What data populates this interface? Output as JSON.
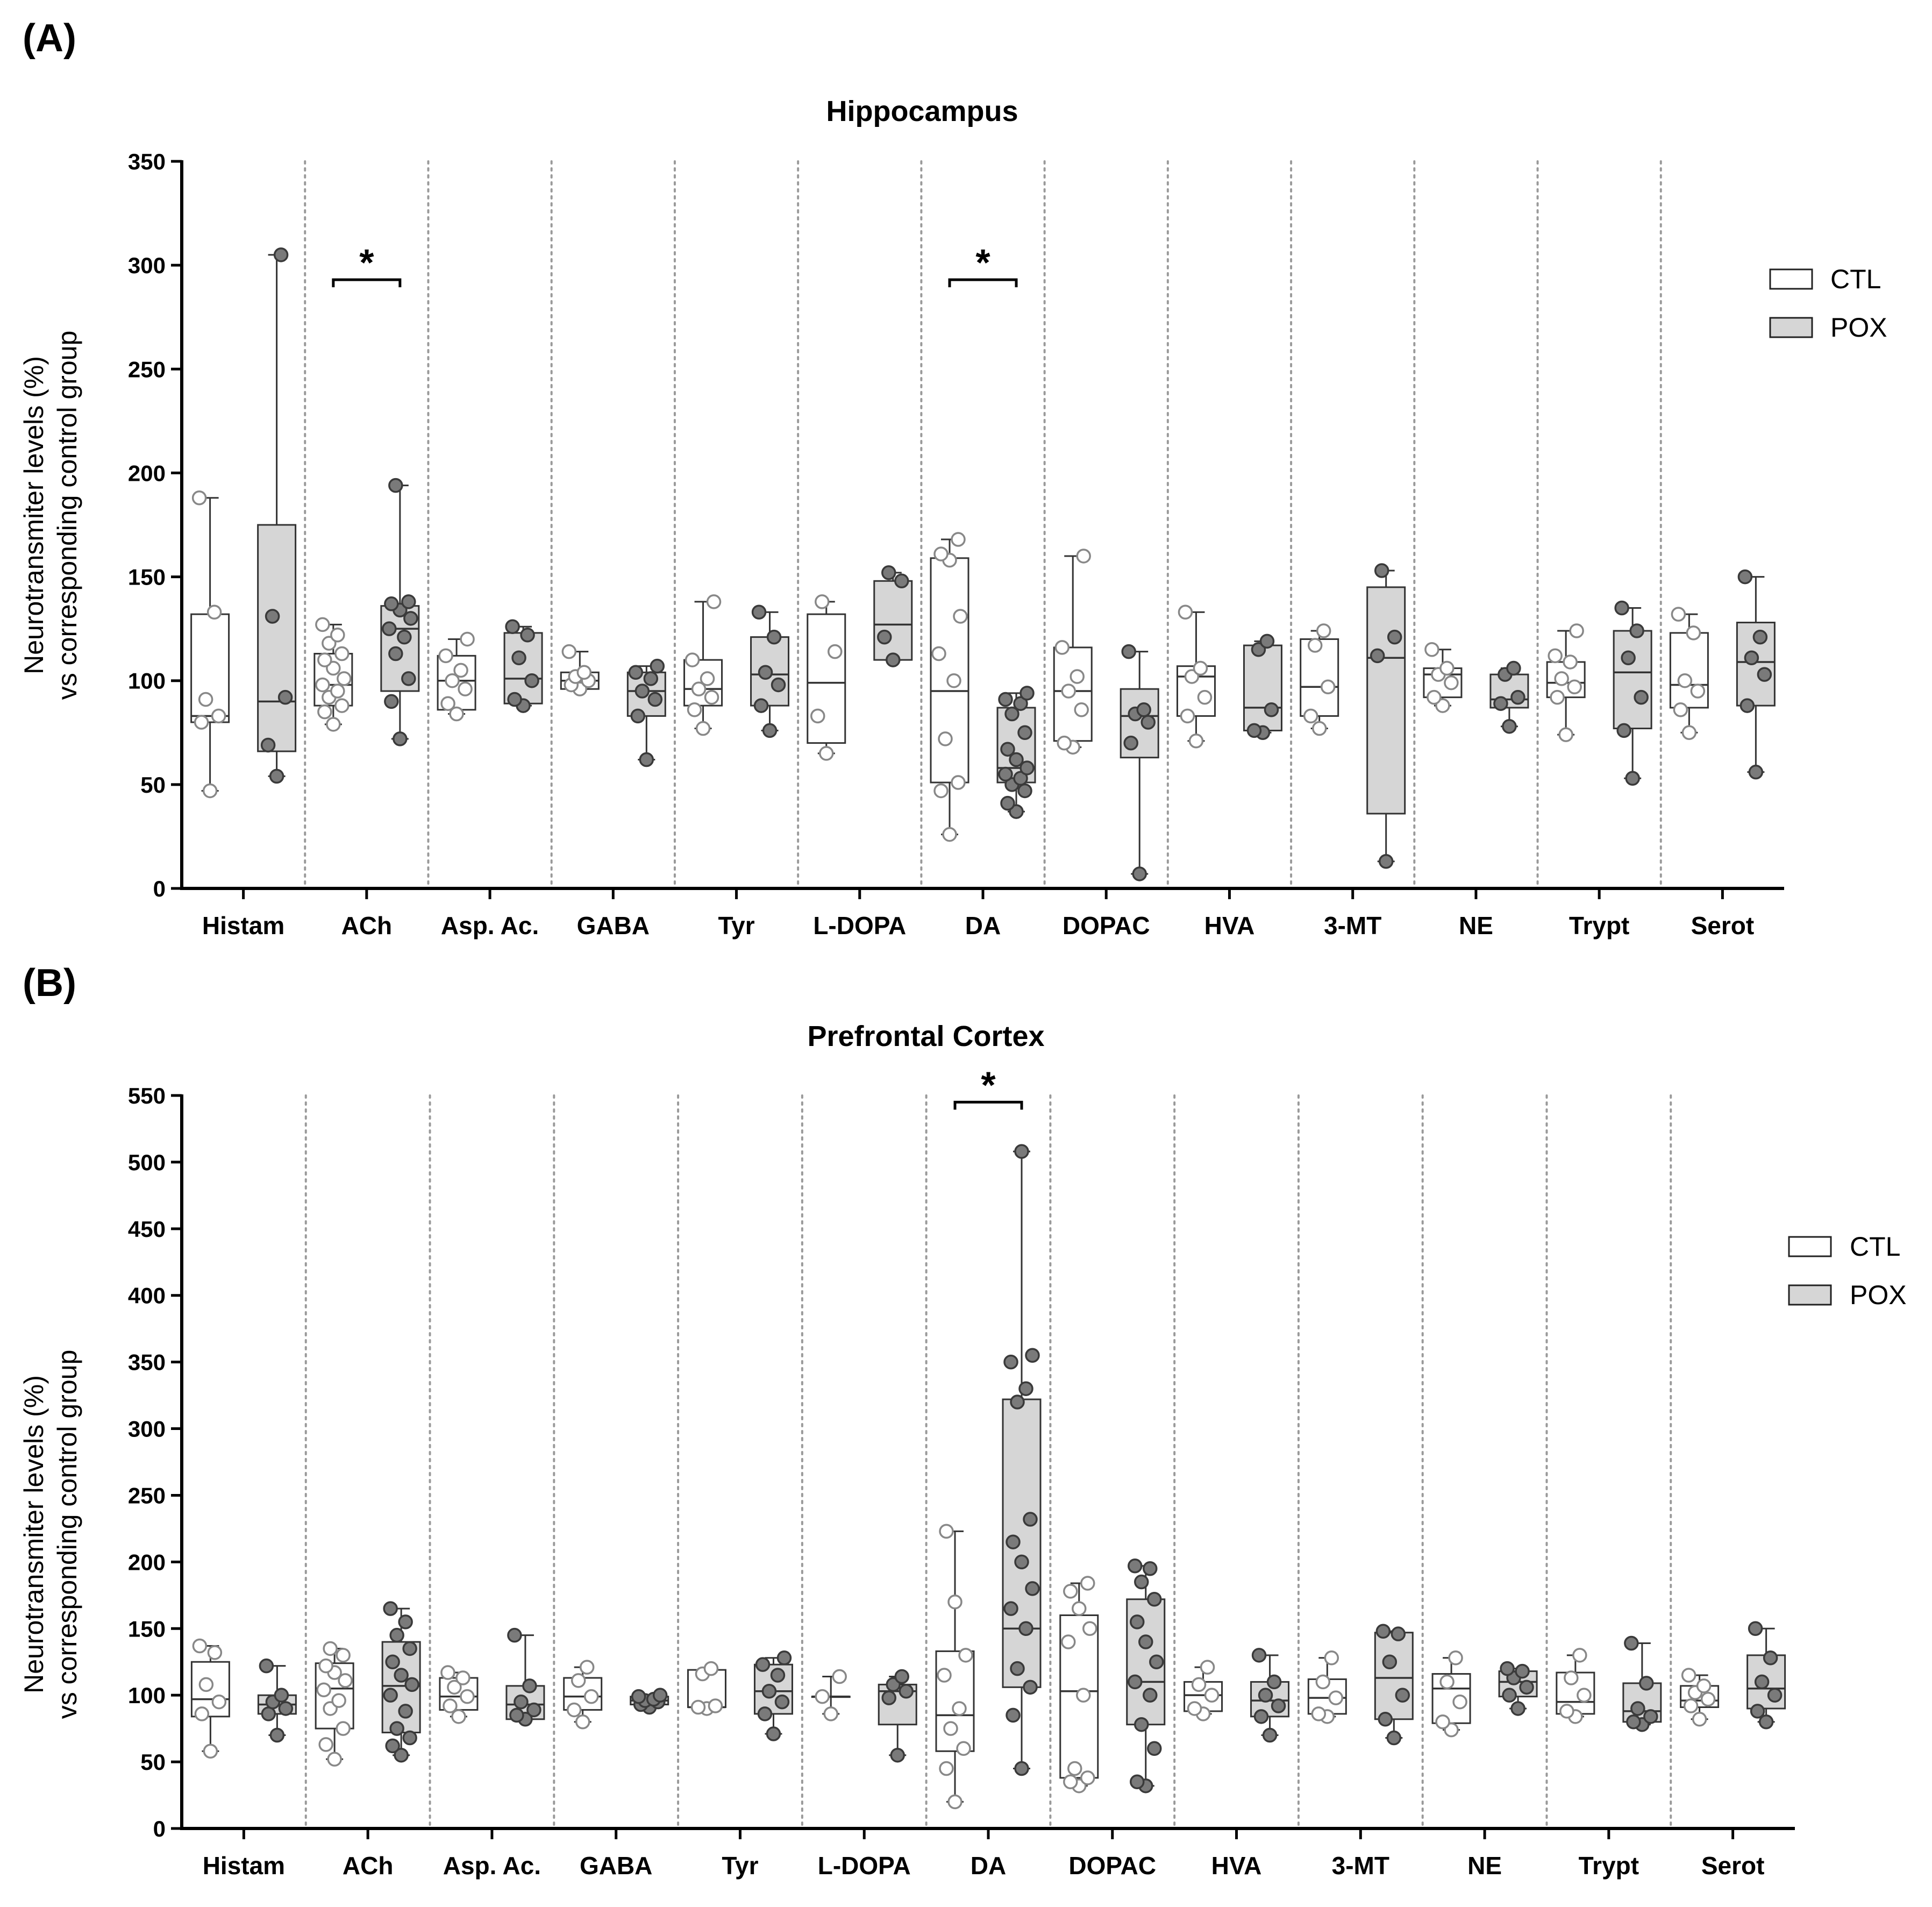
{
  "chart_data": [
    {
      "type": "boxplot",
      "panel_label": "(A)",
      "title": "Hippocampus",
      "ylabel": [
        "Neurotransmiter levels (%)",
        "vs corresponding control group"
      ],
      "ylim": [
        0,
        350
      ],
      "yticks": [
        0,
        50,
        100,
        150,
        200,
        250,
        300,
        350
      ],
      "categories": [
        "Histam",
        "ACh",
        "Asp. Ac.",
        "GABA",
        "Tyr",
        "L-DOPA",
        "DA",
        "DOPAC",
        "HVA",
        "3-MT",
        "NE",
        "Trypt",
        "Serot"
      ],
      "legend": {
        "placement": "right",
        "entries": [
          "CTL",
          "POX"
        ]
      },
      "significance": [
        {
          "category": "ACh",
          "label": "*",
          "y": 293
        },
        {
          "category": "DA",
          "label": "*",
          "y": 293
        }
      ],
      "series": [
        {
          "name": "CTL",
          "boxes": [
            {
              "min": 47,
              "q1": 80,
              "median": 83,
              "q3": 132,
              "max": 188,
              "points": [
                47,
                80,
                83,
                91,
                133,
                188
              ]
            },
            {
              "min": 79,
              "q1": 88,
              "median": 98,
              "q3": 113,
              "max": 127,
              "points": [
                79,
                85,
                88,
                92,
                95,
                98,
                101,
                106,
                110,
                113,
                118,
                122,
                127
              ]
            },
            {
              "min": 84,
              "q1": 86,
              "median": 100,
              "q3": 112,
              "max": 120,
              "points": [
                84,
                89,
                96,
                100,
                105,
                112,
                120
              ]
            },
            {
              "min": 96,
              "q1": 96,
              "median": 100,
              "q3": 104,
              "max": 114,
              "points": [
                96,
                98,
                100,
                102,
                104,
                114
              ]
            },
            {
              "min": 77,
              "q1": 88,
              "median": 96,
              "q3": 110,
              "max": 138,
              "points": [
                77,
                86,
                92,
                96,
                101,
                110,
                138
              ]
            },
            {
              "min": 65,
              "q1": 70,
              "median": 99,
              "q3": 132,
              "max": 138,
              "points": [
                65,
                83,
                114,
                138
              ]
            },
            {
              "min": 26,
              "q1": 51,
              "median": 95,
              "q3": 159,
              "max": 168,
              "points": [
                26,
                47,
                51,
                72,
                100,
                113,
                131,
                158,
                161,
                168
              ]
            },
            {
              "min": 68,
              "q1": 71,
              "median": 95,
              "q3": 116,
              "max": 160,
              "points": [
                68,
                70,
                86,
                95,
                102,
                116,
                160
              ]
            },
            {
              "min": 71,
              "q1": 83,
              "median": 102,
              "q3": 107,
              "max": 133,
              "points": [
                71,
                83,
                92,
                102,
                106,
                133
              ]
            },
            {
              "min": 77,
              "q1": 83,
              "median": 97,
              "q3": 120,
              "max": 124,
              "points": [
                77,
                83,
                97,
                117,
                124
              ]
            },
            {
              "min": 88,
              "q1": 92,
              "median": 103,
              "q3": 106,
              "max": 115,
              "points": [
                88,
                92,
                99,
                103,
                106,
                115
              ]
            },
            {
              "min": 74,
              "q1": 92,
              "median": 99,
              "q3": 109,
              "max": 124,
              "points": [
                74,
                92,
                97,
                101,
                109,
                112,
                124
              ]
            },
            {
              "min": 75,
              "q1": 87,
              "median": 98,
              "q3": 123,
              "max": 132,
              "points": [
                75,
                86,
                95,
                100,
                123,
                132
              ]
            }
          ]
        },
        {
          "name": "POX",
          "boxes": [
            {
              "min": 54,
              "q1": 66,
              "median": 90,
              "q3": 175,
              "max": 305,
              "points": [
                54,
                69,
                92,
                131,
                305
              ]
            },
            {
              "min": 72,
              "q1": 95,
              "median": 125,
              "q3": 136,
              "max": 194,
              "points": [
                72,
                90,
                101,
                113,
                121,
                125,
                130,
                134,
                137,
                138,
                194
              ]
            },
            {
              "min": 88,
              "q1": 89,
              "median": 101,
              "q3": 123,
              "max": 126,
              "points": [
                88,
                91,
                100,
                111,
                122,
                126
              ]
            },
            {
              "min": 62,
              "q1": 83,
              "median": 95,
              "q3": 104,
              "max": 107,
              "points": [
                62,
                83,
                91,
                95,
                101,
                104,
                107
              ]
            },
            {
              "min": 76,
              "q1": 88,
              "median": 103,
              "q3": 121,
              "max": 133,
              "points": [
                76,
                88,
                98,
                104,
                121,
                133
              ]
            },
            {
              "min": 110,
              "q1": 110,
              "median": 127,
              "q3": 148,
              "max": 152,
              "points": [
                110,
                121,
                148,
                152
              ]
            },
            {
              "min": 37,
              "q1": 51,
              "median": 58,
              "q3": 87,
              "max": 94,
              "points": [
                37,
                41,
                47,
                50,
                53,
                55,
                58,
                62,
                67,
                75,
                84,
                89,
                91,
                94
              ]
            },
            {
              "min": 7,
              "q1": 63,
              "median": 83,
              "q3": 96,
              "max": 114,
              "points": [
                7,
                70,
                80,
                84,
                86,
                114
              ]
            },
            {
              "min": 75,
              "q1": 76,
              "median": 87,
              "q3": 117,
              "max": 119,
              "points": [
                75,
                76,
                86,
                115,
                119
              ]
            },
            {
              "min": 13,
              "q1": 36,
              "median": 111,
              "q3": 145,
              "max": 153,
              "points": [
                13,
                112,
                121,
                153
              ]
            },
            {
              "min": 78,
              "q1": 87,
              "median": 91,
              "q3": 103,
              "max": 106,
              "points": [
                78,
                89,
                92,
                103,
                106
              ]
            },
            {
              "min": 53,
              "q1": 77,
              "median": 104,
              "q3": 124,
              "max": 135,
              "points": [
                53,
                76,
                92,
                111,
                124,
                135
              ]
            },
            {
              "min": 56,
              "q1": 88,
              "median": 109,
              "q3": 128,
              "max": 150,
              "points": [
                56,
                88,
                103,
                111,
                121,
                150
              ]
            }
          ]
        }
      ]
    },
    {
      "type": "boxplot",
      "panel_label": "(B)",
      "title": "Prefrontal Cortex",
      "ylabel": [
        "Neurotransmiter levels (%)",
        "vs corresponding control group"
      ],
      "ylim": [
        0,
        550
      ],
      "yticks": [
        0,
        50,
        100,
        150,
        200,
        250,
        300,
        350,
        400,
        450,
        500,
        550
      ],
      "categories": [
        "Histam",
        "ACh",
        "Asp. Ac.",
        "GABA",
        "Tyr",
        "L-DOPA",
        "DA",
        "DOPAC",
        "HVA",
        "3-MT",
        "NE",
        "Trypt",
        "Serot"
      ],
      "legend": {
        "placement": "right",
        "entries": [
          "CTL",
          "POX"
        ]
      },
      "significance": [
        {
          "category": "DA",
          "label": "*",
          "y": 545
        }
      ],
      "series": [
        {
          "name": "CTL",
          "boxes": [
            {
              "min": 58,
              "q1": 84,
              "median": 97,
              "q3": 125,
              "max": 137,
              "points": [
                58,
                86,
                95,
                108,
                132,
                137
              ]
            },
            {
              "min": 52,
              "q1": 75,
              "median": 105,
              "q3": 124,
              "max": 135,
              "points": [
                52,
                63,
                75,
                90,
                96,
                104,
                111,
                117,
                122,
                130,
                135
              ]
            },
            {
              "min": 84,
              "q1": 89,
              "median": 99,
              "q3": 113,
              "max": 117,
              "points": [
                84,
                92,
                99,
                106,
                113,
                117
              ]
            },
            {
              "min": 80,
              "q1": 89,
              "median": 99,
              "q3": 113,
              "max": 121,
              "points": [
                80,
                89,
                99,
                111,
                121
              ]
            },
            {
              "min": 90,
              "q1": 91,
              "median": 91,
              "q3": 119,
              "max": 120,
              "points": [
                90,
                91,
                92,
                116,
                120
              ]
            },
            {
              "min": 86,
              "q1": 99,
              "median": 99,
              "q3": 99,
              "max": 114,
              "points": [
                86,
                99,
                114
              ]
            },
            {
              "min": 20,
              "q1": 58,
              "median": 85,
              "q3": 133,
              "max": 223,
              "points": [
                20,
                45,
                60,
                75,
                90,
                115,
                130,
                170,
                223
              ]
            },
            {
              "min": 32,
              "q1": 38,
              "median": 103,
              "q3": 160,
              "max": 184,
              "points": [
                32,
                35,
                38,
                45,
                100,
                140,
                150,
                165,
                178,
                184
              ]
            },
            {
              "min": 86,
              "q1": 88,
              "median": 100,
              "q3": 110,
              "max": 121,
              "points": [
                86,
                90,
                100,
                108,
                121
              ]
            },
            {
              "min": 84,
              "q1": 86,
              "median": 98,
              "q3": 112,
              "max": 128,
              "points": [
                84,
                86,
                98,
                110,
                128
              ]
            },
            {
              "min": 74,
              "q1": 79,
              "median": 105,
              "q3": 116,
              "max": 128,
              "points": [
                74,
                80,
                95,
                110,
                128
              ]
            },
            {
              "min": 84,
              "q1": 86,
              "median": 95,
              "q3": 117,
              "max": 130,
              "points": [
                84,
                88,
                100,
                113,
                130
              ]
            },
            {
              "min": 82,
              "q1": 91,
              "median": 96,
              "q3": 107,
              "max": 115,
              "points": [
                82,
                92,
                97,
                102,
                107,
                115
              ]
            }
          ]
        },
        {
          "name": "POX",
          "boxes": [
            {
              "min": 70,
              "q1": 86,
              "median": 93,
              "q3": 100,
              "max": 122,
              "points": [
                70,
                86,
                90,
                95,
                100,
                122
              ]
            },
            {
              "min": 55,
              "q1": 72,
              "median": 107,
              "q3": 140,
              "max": 165,
              "points": [
                55,
                62,
                68,
                75,
                88,
                100,
                108,
                115,
                125,
                135,
                145,
                155,
                165
              ]
            },
            {
              "min": 82,
              "q1": 82,
              "median": 93,
              "q3": 107,
              "max": 145,
              "points": [
                82,
                85,
                89,
                95,
                107,
                145
              ]
            },
            {
              "min": 91,
              "q1": 93,
              "median": 96,
              "q3": 99,
              "max": 100,
              "points": [
                91,
                93,
                95,
                96,
                97,
                99,
                100
              ]
            },
            {
              "min": 71,
              "q1": 86,
              "median": 103,
              "q3": 123,
              "max": 128,
              "points": [
                71,
                86,
                95,
                103,
                115,
                123,
                128
              ]
            },
            {
              "min": 55,
              "q1": 78,
              "median": 103,
              "q3": 108,
              "max": 114,
              "points": [
                55,
                98,
                103,
                108,
                114
              ]
            },
            {
              "min": 45,
              "q1": 106,
              "median": 150,
              "q3": 322,
              "max": 508,
              "points": [
                45,
                85,
                106,
                120,
                150,
                165,
                180,
                200,
                215,
                232,
                320,
                330,
                350,
                355,
                508
              ]
            },
            {
              "min": 32,
              "q1": 78,
              "median": 110,
              "q3": 172,
              "max": 197,
              "points": [
                32,
                35,
                60,
                78,
                100,
                110,
                125,
                140,
                155,
                172,
                185,
                195,
                197
              ]
            },
            {
              "min": 70,
              "q1": 84,
              "median": 96,
              "q3": 110,
              "max": 130,
              "points": [
                70,
                84,
                92,
                100,
                110,
                130
              ]
            },
            {
              "min": 68,
              "q1": 82,
              "median": 113,
              "q3": 147,
              "max": 148,
              "points": [
                68,
                82,
                100,
                125,
                146,
                148
              ]
            },
            {
              "min": 90,
              "q1": 99,
              "median": 110,
              "q3": 118,
              "max": 120,
              "points": [
                90,
                100,
                106,
                113,
                118,
                120
              ]
            },
            {
              "min": 78,
              "q1": 80,
              "median": 88,
              "q3": 109,
              "max": 139,
              "points": [
                78,
                80,
                84,
                90,
                109,
                139
              ]
            },
            {
              "min": 80,
              "q1": 90,
              "median": 105,
              "q3": 130,
              "max": 150,
              "points": [
                80,
                88,
                100,
                110,
                128,
                150
              ]
            }
          ]
        }
      ]
    }
  ]
}
